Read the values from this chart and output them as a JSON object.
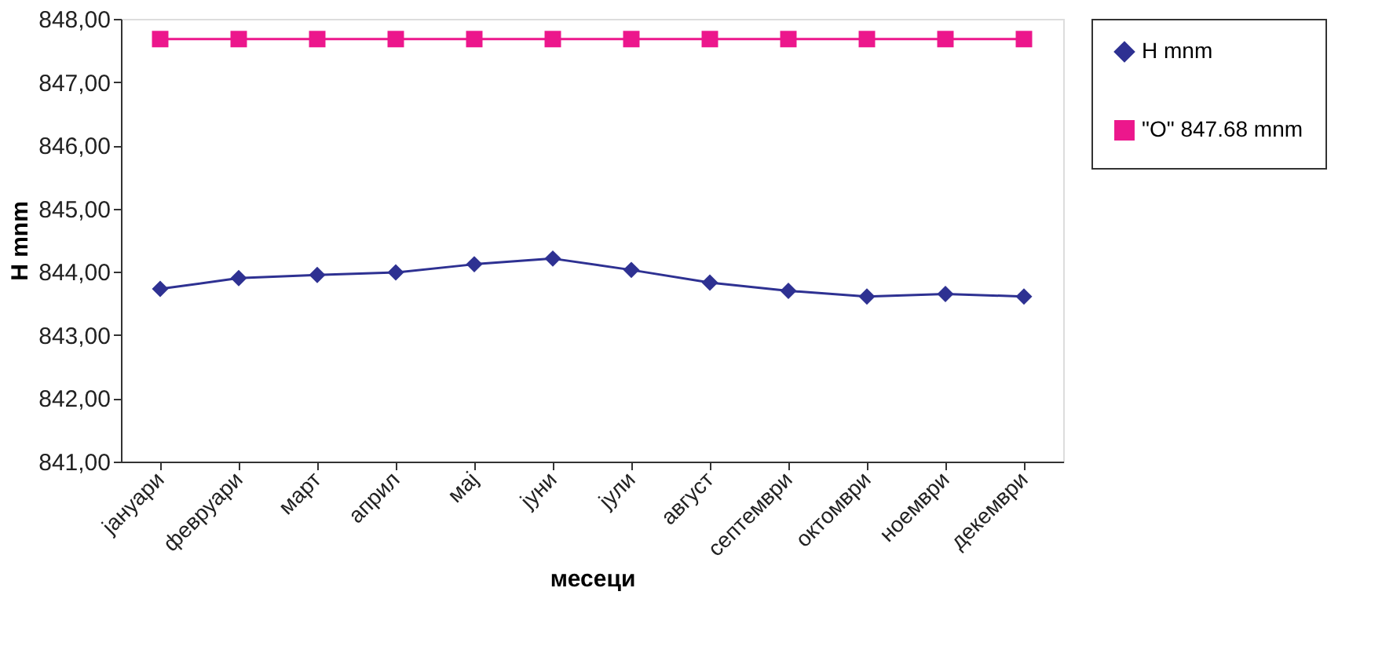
{
  "chart_data": {
    "type": "line",
    "xlabel": "месеци",
    "ylabel": "H mnm",
    "categories": [
      "јануари",
      "февруари",
      "март",
      "април",
      "мај",
      "јуни",
      "јули",
      "август",
      "септември",
      "октомври",
      "ноември",
      "декември"
    ],
    "series": [
      {
        "name": "H mnm",
        "color": "#2e3192",
        "marker": "diamond",
        "values": [
          843.73,
          843.9,
          843.95,
          843.99,
          844.12,
          844.21,
          844.03,
          843.83,
          843.7,
          843.61,
          843.65,
          843.61
        ]
      },
      {
        "name": "\"O\" 847.68 mnm",
        "color": "#ec178c",
        "marker": "square",
        "values": [
          847.68,
          847.68,
          847.68,
          847.68,
          847.68,
          847.68,
          847.68,
          847.68,
          847.68,
          847.68,
          847.68,
          847.68
        ]
      }
    ],
    "ylim": [
      841,
      848
    ],
    "yticks": [
      {
        "value": 841,
        "label": "841,00"
      },
      {
        "value": 842,
        "label": "842,00"
      },
      {
        "value": 843,
        "label": "843,00"
      },
      {
        "value": 844,
        "label": "844,00"
      },
      {
        "value": 845,
        "label": "845,00"
      },
      {
        "value": 846,
        "label": "846,00"
      },
      {
        "value": 847,
        "label": "847,00"
      },
      {
        "value": 848,
        "label": "848,00"
      }
    ],
    "grid": false,
    "legend": "right",
    "line_style": "solid"
  }
}
